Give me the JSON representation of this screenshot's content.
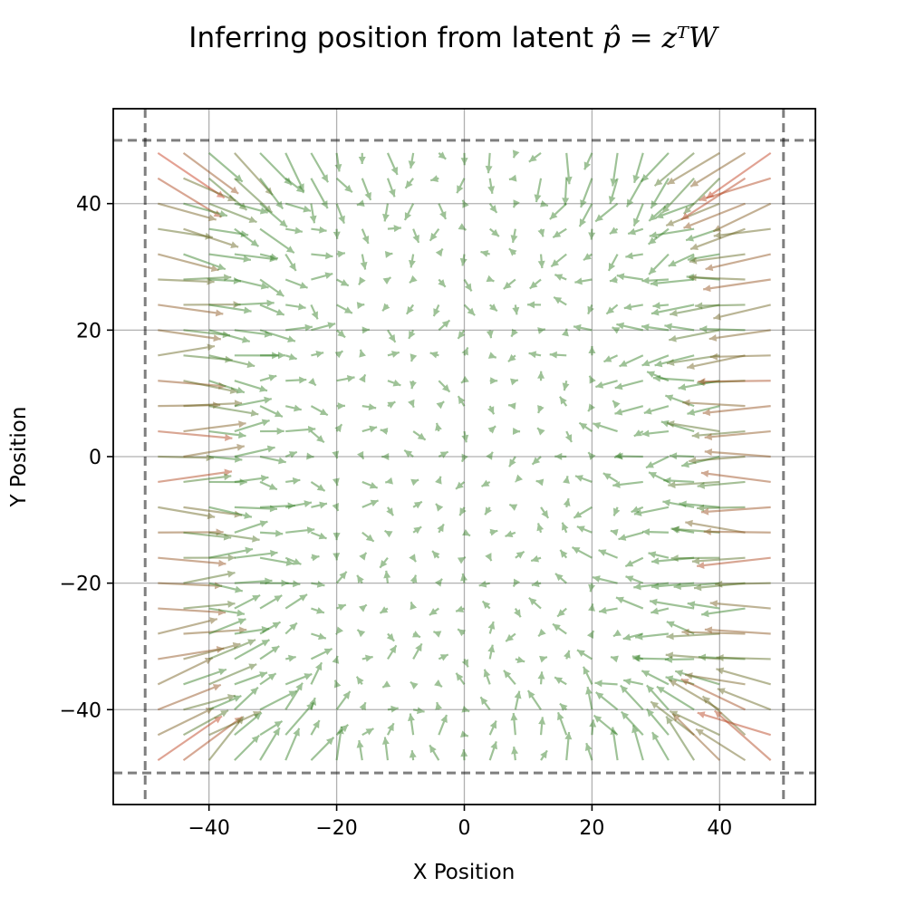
{
  "chart_data": {
    "type": "quiver",
    "title": {
      "prefix": "Inferring position from latent ",
      "equation": "p̂ = zᵀW"
    },
    "xlabel": "X Position",
    "ylabel": "Y Position",
    "xlim": [
      -55,
      55
    ],
    "ylim": [
      -55,
      55
    ],
    "xticks": [
      -40,
      -20,
      0,
      20,
      40
    ],
    "yticks": [
      -40,
      -20,
      0,
      20,
      40
    ],
    "xtick_labels": [
      "−40",
      "−20",
      "0",
      "20",
      "40"
    ],
    "ytick_labels": [
      "−40",
      "−20",
      "0",
      "20",
      "40"
    ],
    "grid": true,
    "boundary": {
      "xmin": -50,
      "xmax": 50,
      "ymin": -50,
      "ymax": 50,
      "style": "dashed"
    },
    "field": {
      "description": "error vectors pointing from true to inferred position; sampled on a grid",
      "grid_start": -48,
      "grid_end": 48,
      "grid_step": 4,
      "color_small_error": "#2a7a1a",
      "color_large_error": "#d02a10"
    },
    "vectors_sample": [
      {
        "x": -48,
        "y": 44,
        "u": 10.5,
        "v": -5.0
      },
      {
        "x": -48,
        "y": 0,
        "u": 10.0,
        "v": 0.0
      },
      {
        "x": -48,
        "y": -44,
        "u": 10.5,
        "v": 5.0
      },
      {
        "x": -24,
        "y": 40,
        "u": 3.5,
        "v": -1.0
      },
      {
        "x": 0,
        "y": 0,
        "u": 0.5,
        "v": 0.3
      },
      {
        "x": 24,
        "y": -40,
        "u": -3.5,
        "v": 1.0
      },
      {
        "x": 48,
        "y": 44,
        "u": -10.5,
        "v": -5.0
      },
      {
        "x": 48,
        "y": 0,
        "u": -10.0,
        "v": 0.0
      },
      {
        "x": 48,
        "y": -44,
        "u": -10.5,
        "v": 5.0
      }
    ]
  }
}
